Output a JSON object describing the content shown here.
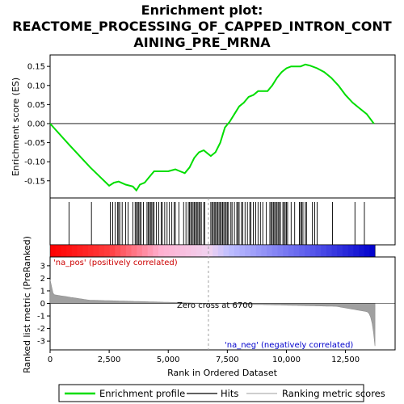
{
  "chart_data": {
    "type": "line",
    "title_lines": [
      "Enrichment plot:",
      "REACTOME_PROCESSING_OF_CAPPED_INTRON_CONT",
      "AINING_PRE_MRNA"
    ],
    "es_panel": {
      "ylabel": "Enrichment score (ES)",
      "ylim": [
        -0.195,
        0.18
      ],
      "yticks": [
        -0.15,
        -0.1,
        -0.05,
        0.0,
        0.05,
        0.1,
        0.15
      ],
      "ytick_labels": [
        "-0.15",
        "-0.10",
        "-0.05",
        "0.00",
        "0.05",
        "0.10",
        "0.15"
      ],
      "series": [
        {
          "name": "Enrichment profile",
          "color": "#00dd00",
          "x": [
            0,
            800,
            1700,
            2500,
            2700,
            2900,
            3200,
            3500,
            3650,
            3800,
            4000,
            4200,
            4400,
            4700,
            5000,
            5300,
            5500,
            5700,
            5900,
            6100,
            6300,
            6500,
            6800,
            7000,
            7200,
            7400,
            7600,
            7800,
            8000,
            8200,
            8400,
            8600,
            8800,
            9000,
            9200,
            9400,
            9600,
            9800,
            10000,
            10200,
            10400,
            10600,
            10800,
            11000,
            11300,
            11600,
            11900,
            12200,
            12500,
            12800,
            13100,
            13400,
            13700
          ],
          "y": [
            0.0,
            -0.055,
            -0.115,
            -0.163,
            -0.155,
            -0.152,
            -0.16,
            -0.165,
            -0.175,
            -0.16,
            -0.155,
            -0.14,
            -0.125,
            -0.125,
            -0.125,
            -0.12,
            -0.125,
            -0.13,
            -0.115,
            -0.09,
            -0.075,
            -0.07,
            -0.085,
            -0.075,
            -0.05,
            -0.01,
            0.005,
            0.025,
            0.045,
            0.055,
            0.07,
            0.075,
            0.085,
            0.085,
            0.085,
            0.1,
            0.12,
            0.135,
            0.145,
            0.15,
            0.15,
            0.15,
            0.155,
            0.152,
            0.145,
            0.135,
            0.12,
            0.1,
            0.075,
            0.055,
            0.04,
            0.025,
            0.0
          ]
        }
      ]
    },
    "hits": {
      "legend_label": "Hits",
      "positions": [
        800,
        1750,
        2550,
        2650,
        2750,
        2850,
        2900,
        2950,
        3050,
        3200,
        3300,
        3500,
        3600,
        3650,
        3700,
        3750,
        3800,
        3850,
        3950,
        4100,
        4150,
        4200,
        4250,
        4300,
        4350,
        4400,
        4500,
        4600,
        4700,
        4750,
        4850,
        4950,
        5050,
        5150,
        5250,
        5300,
        5450,
        5650,
        5750,
        5850,
        5900,
        5950,
        6000,
        6050,
        6100,
        6150,
        6200,
        6250,
        6300,
        6350,
        6400,
        6500,
        6550,
        6800,
        6850,
        6900,
        6950,
        7000,
        7050,
        7100,
        7150,
        7200,
        7250,
        7300,
        7350,
        7400,
        7450,
        7500,
        7550,
        7650,
        7700,
        7800,
        7900,
        7950,
        8000,
        8100,
        8150,
        8250,
        8350,
        8450,
        8500,
        8600,
        8700,
        8800,
        8900,
        9000,
        9150,
        9300,
        9350,
        9400,
        9450,
        9500,
        9550,
        9600,
        9650,
        9700,
        9750,
        9850,
        9900,
        9950,
        10000,
        10050,
        10200,
        10350,
        10550,
        10600,
        10650,
        10700,
        10800,
        10850,
        11100,
        11200,
        11300,
        11950,
        12900,
        13300
      ]
    },
    "ranked_metric": {
      "ylabel": "Ranked list metric (PreRanked)",
      "xlabel": "Rank in Ordered Dataset",
      "ylim": [
        -3.7,
        3.7
      ],
      "yticks": [
        -3,
        -2,
        -1,
        0,
        1,
        2,
        3
      ],
      "ytick_labels": [
        "-3",
        "-2",
        "-1",
        "0",
        "1",
        "2",
        "3"
      ],
      "xlim": [
        0,
        14600
      ],
      "xticks": [
        0,
        2500,
        5000,
        7500,
        10000,
        12500
      ],
      "xtick_labels": [
        "0",
        "2,500",
        "5,000",
        "7,500",
        "10,000",
        "12,500"
      ],
      "n_genes": 13750,
      "zero_cross": 6700,
      "zero_cross_label": "Zero cross at 6700",
      "pos_label": "'na_pos' (positively correlated)",
      "neg_label": "'na_neg' (negatively correlated)",
      "legend_label": "Ranking metric scores",
      "pos_color": "#cc0000",
      "neg_color": "#0000cc",
      "fill_color": "#a0a0a0"
    },
    "colors": {
      "bar_red": "#ff0000",
      "bar_pink": "#ffb0d0",
      "bar_lightblue": "#b0b0ff",
      "bar_blue": "#0000cc"
    }
  }
}
